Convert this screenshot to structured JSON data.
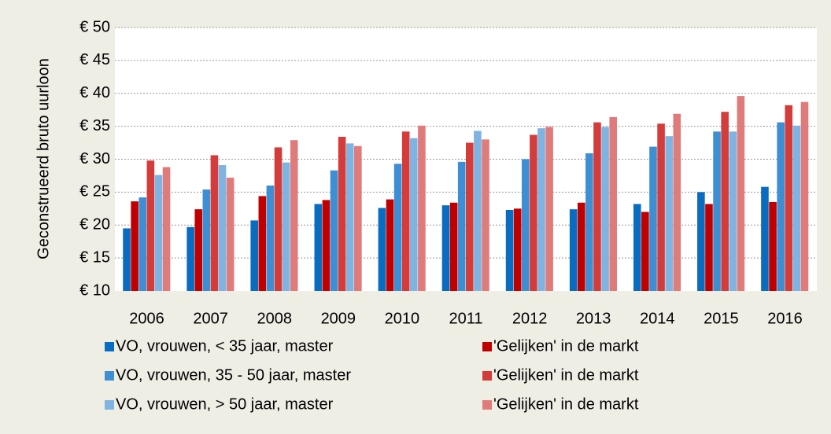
{
  "chart_data": {
    "type": "bar",
    "y_label": "Geconstrueerd bruto uurloon",
    "categories": [
      "2006",
      "2007",
      "2008",
      "2009",
      "2010",
      "2011",
      "2012",
      "2013",
      "2014",
      "2015",
      "2016"
    ],
    "series": [
      {
        "name": "VO, vrouwen, < 35 jaar, master",
        "color": "#0a6cc0",
        "values": [
          19.5,
          19.7,
          20.7,
          23.2,
          22.6,
          23.0,
          22.3,
          22.4,
          23.2,
          25.0,
          25.8
        ]
      },
      {
        "name": "'Gelijken' in de markt",
        "color": "#c00000",
        "values": [
          23.6,
          22.4,
          24.4,
          23.8,
          23.9,
          23.4,
          22.5,
          23.4,
          22.0,
          23.2,
          23.5
        ]
      },
      {
        "name": "VO, vrouwen, 35 - 50 jaar, master",
        "color": "#3d8ed2",
        "values": [
          24.2,
          25.4,
          26.0,
          28.3,
          29.3,
          29.6,
          30.0,
          30.9,
          31.9,
          34.2,
          35.6
        ]
      },
      {
        "name": "'Gelijken' in de markt",
        "color": "#d43c3c",
        "values": [
          29.8,
          30.6,
          31.8,
          33.4,
          34.2,
          32.5,
          33.7,
          35.6,
          35.4,
          37.2,
          38.2
        ]
      },
      {
        "name": "VO, vrouwen, > 50 jaar, master",
        "color": "#7eb3e2",
        "values": [
          27.6,
          29.1,
          29.5,
          32.4,
          33.2,
          34.3,
          34.7,
          34.9,
          33.5,
          34.2,
          35.1
        ]
      },
      {
        "name": "'Gelijken' in de markt",
        "color": "#e07b7b",
        "values": [
          28.8,
          27.2,
          32.9,
          32.0,
          35.1,
          33.0,
          34.9,
          36.4,
          36.9,
          39.6,
          38.7
        ]
      }
    ],
    "ylim": [
      10,
      50
    ],
    "yticks": [
      {
        "value": 10,
        "label": "€ 10"
      },
      {
        "value": 15,
        "label": "€ 15"
      },
      {
        "value": 20,
        "label": "€ 20"
      },
      {
        "value": 25,
        "label": "€ 25"
      },
      {
        "value": 30,
        "label": "€ 30"
      },
      {
        "value": 35,
        "label": "€ 35"
      },
      {
        "value": 40,
        "label": "€ 40"
      },
      {
        "value": 45,
        "label": "€ 45"
      },
      {
        "value": 50,
        "label": "€ 50"
      }
    ],
    "grid": true
  }
}
